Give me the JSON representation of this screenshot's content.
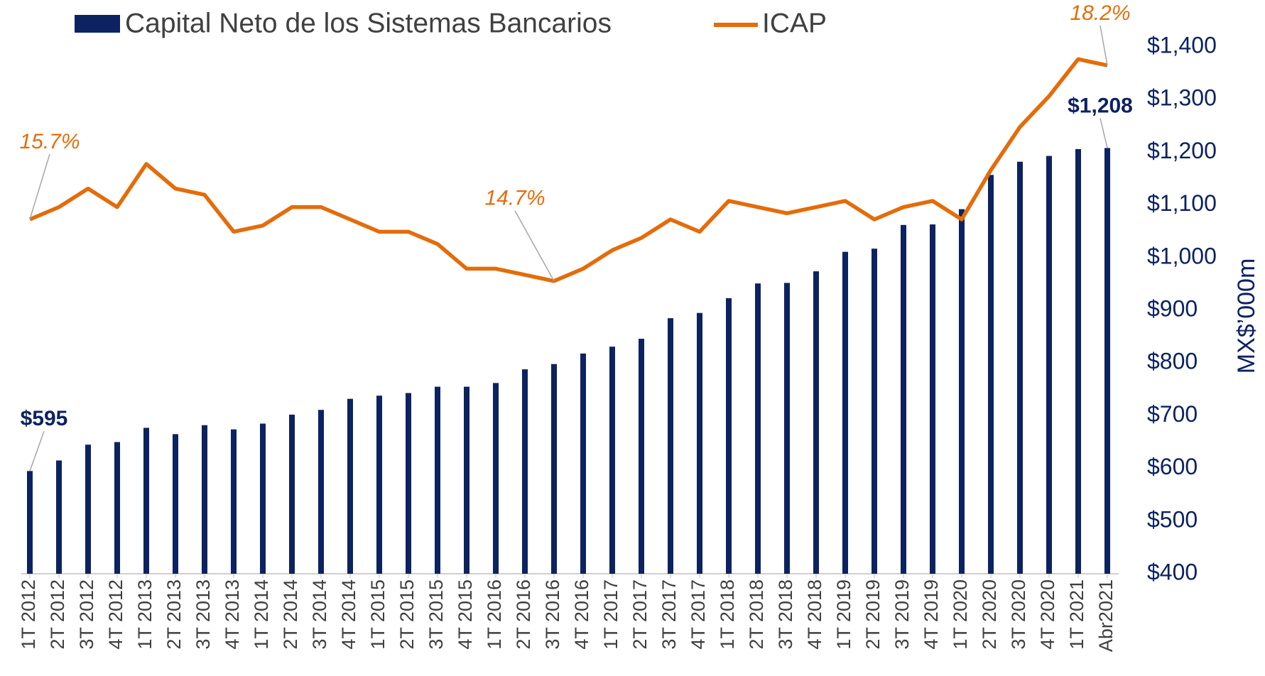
{
  "chart_data": {
    "type": "bar-line",
    "categories": [
      "1T 2012",
      "2T 2012",
      "3T 2012",
      "4T 2012",
      "1T 2013",
      "2T 2013",
      "3T 2013",
      "4T 2013",
      "1T 2014",
      "2T 2014",
      "3T 2014",
      "4T 2014",
      "1T 2015",
      "2T 2015",
      "3T 2015",
      "4T 2015",
      "1T 2016",
      "2T 2016",
      "3T 2016",
      "4T 2016",
      "1T 2017",
      "2T 2017",
      "3T 2017",
      "4T 2017",
      "1T 2018",
      "2T 2018",
      "3T 2018",
      "4T 2018",
      "1T 2019",
      "2T 2019",
      "3T 2019",
      "4T 2019",
      "1T 2020",
      "2T 2020",
      "3T 2020",
      "4T 2020",
      "1T 2021",
      "Abr2021"
    ],
    "series": [
      {
        "name": "Capital Neto de los Sistemas Bancarios",
        "type": "bar",
        "color": "#0d2260",
        "values": [
          595,
          615,
          645,
          650,
          677,
          665,
          682,
          674,
          685,
          702,
          711,
          732,
          738,
          743,
          755,
          755,
          762,
          788,
          798,
          818,
          831,
          846,
          885,
          895,
          923,
          951,
          952,
          974,
          1011,
          1017,
          1062,
          1063,
          1092,
          1157,
          1182,
          1193,
          1206,
          1208
        ],
        "value_labels": [
          "$595",
          null,
          null,
          null,
          null,
          null,
          null,
          null,
          null,
          null,
          null,
          null,
          null,
          null,
          null,
          null,
          null,
          null,
          null,
          null,
          null,
          null,
          null,
          null,
          null,
          null,
          null,
          null,
          null,
          null,
          null,
          null,
          null,
          null,
          null,
          null,
          null,
          "$1,208"
        ]
      },
      {
        "name": "ICAP",
        "type": "line",
        "axis": "y2",
        "color": "#e46c0a",
        "values": [
          15.7,
          15.9,
          16.2,
          15.9,
          16.6,
          16.2,
          16.1,
          15.5,
          15.6,
          15.9,
          15.9,
          15.7,
          15.5,
          15.5,
          15.3,
          14.9,
          14.9,
          14.8,
          14.7,
          14.9,
          15.2,
          15.4,
          15.7,
          15.5,
          16.0,
          15.9,
          15.8,
          15.9,
          16.0,
          15.7,
          15.9,
          16.0,
          15.7,
          16.5,
          17.2,
          17.7,
          18.3,
          18.2
        ],
        "value_labels": [
          "15.7%",
          null,
          null,
          null,
          null,
          null,
          null,
          null,
          null,
          null,
          null,
          null,
          null,
          null,
          null,
          null,
          null,
          null,
          "14.7%",
          null,
          null,
          null,
          null,
          null,
          null,
          null,
          null,
          null,
          null,
          null,
          null,
          null,
          null,
          null,
          null,
          null,
          null,
          "18.2%"
        ]
      }
    ],
    "y_axis_label": "MX$’000m",
    "ylim": [
      400,
      1400
    ],
    "yticks": [
      {
        "value": 400,
        "label": "$400"
      },
      {
        "value": 500,
        "label": "$500"
      },
      {
        "value": 600,
        "label": "$600"
      },
      {
        "value": 700,
        "label": "$700"
      },
      {
        "value": 800,
        "label": "$800"
      },
      {
        "value": 900,
        "label": "$900"
      },
      {
        "value": 1000,
        "label": "$1,000"
      },
      {
        "value": 1100,
        "label": "$1,100"
      },
      {
        "value": 1200,
        "label": "$1,200"
      },
      {
        "value": 1300,
        "label": "$1,300"
      },
      {
        "value": 1400,
        "label": "$1,400"
      }
    ],
    "y2lim": [
      9.95,
      18.5
    ],
    "grid": false
  }
}
